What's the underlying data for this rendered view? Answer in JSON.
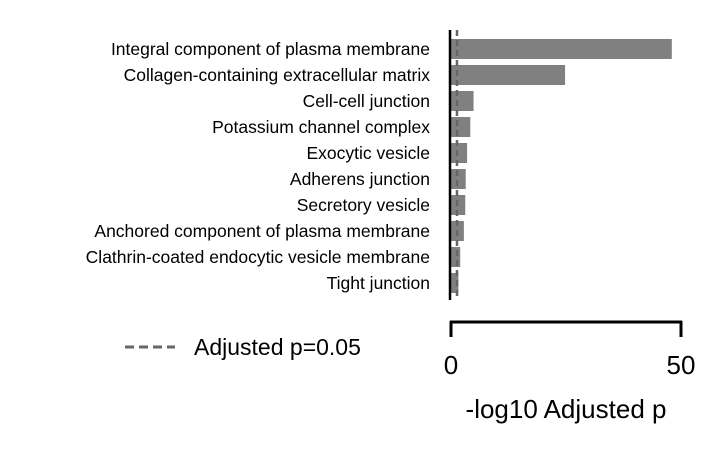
{
  "chart_data": {
    "type": "bar",
    "orientation": "horizontal",
    "categories": [
      "Integral component of plasma membrane",
      "Collagen-containing extracellular matrix",
      "Cell-cell junction",
      "Potassium channel complex",
      "Exocytic vesicle",
      "Adherens junction",
      "Secretory vesicle",
      "Anchored component of plasma membrane",
      "Clathrin-coated endocytic vesicle membrane",
      "Tight junction"
    ],
    "values": [
      48.0,
      24.8,
      4.9,
      4.2,
      3.5,
      3.2,
      3.1,
      2.8,
      2.0,
      1.6
    ],
    "bar_color": "#808080",
    "xlabel": "-log10 Adjusted p",
    "xlim": [
      0,
      50
    ],
    "xticks": [
      0,
      50
    ],
    "threshold": {
      "value": 1.30103,
      "label": "Adjusted p=0.05",
      "color": "#666666",
      "style": "dashed"
    },
    "legend_position": "bottom-left",
    "grid": false
  }
}
